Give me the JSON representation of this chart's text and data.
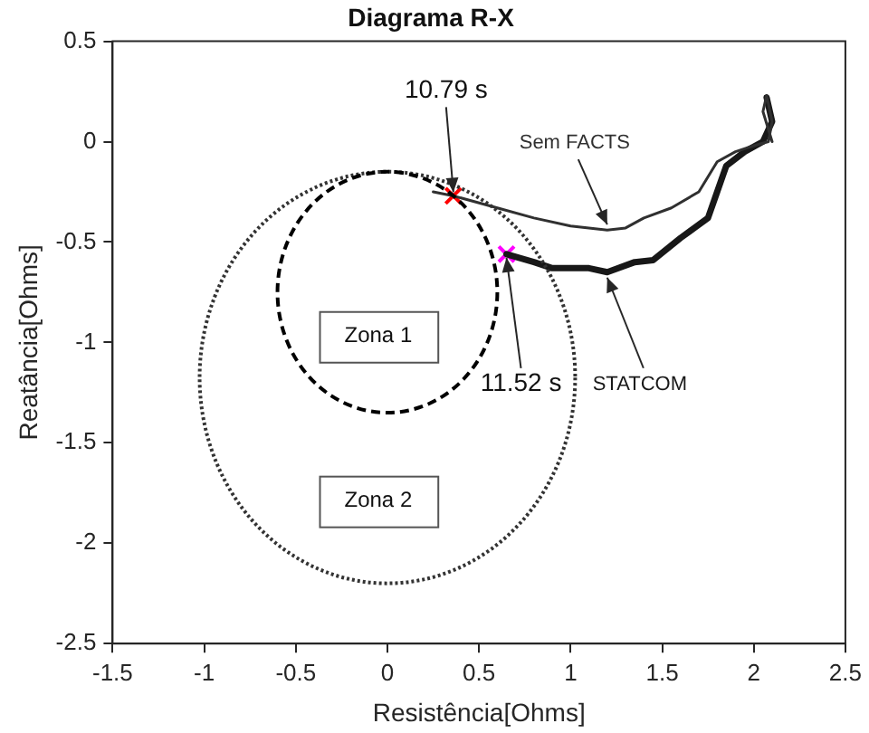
{
  "chart_data": {
    "type": "line",
    "title": "Diagrama R-X",
    "xlabel": "Resistência[Ohms]",
    "ylabel": "Reatância[Ohms]",
    "xlim": [
      -1.5,
      2.5
    ],
    "xticks": [
      -1.5,
      -1,
      -0.5,
      0,
      0.5,
      1,
      1.5,
      2,
      2.5
    ],
    "ylim": [
      -2.5,
      0.5
    ],
    "yticks": [
      -2.5,
      -2,
      -1.5,
      -1,
      -0.5,
      0,
      0.5
    ],
    "grid": false,
    "legend": false,
    "marker": "none",
    "series": [
      {
        "name": "Sem FACTS",
        "color": "#303030",
        "line_style": "solid",
        "x": [
          0.25,
          0.36,
          0.6,
          0.8,
          1.0,
          1.2,
          1.3,
          1.4,
          1.55,
          1.7,
          1.8,
          1.9,
          2.0,
          2.08,
          2.1,
          2.07,
          2.05,
          2.1
        ],
        "values": [
          -0.25,
          -0.27,
          -0.33,
          -0.38,
          -0.42,
          -0.44,
          -0.43,
          -0.38,
          -0.33,
          -0.25,
          -0.1,
          -0.05,
          -0.02,
          0.0,
          0.1,
          0.23,
          0.15,
          0.0
        ]
      },
      {
        "name": "STATCOM",
        "color": "#181818",
        "line_style": "solid",
        "x": [
          0.65,
          0.8,
          0.9,
          1.1,
          1.2,
          1.35,
          1.45,
          1.6,
          1.75,
          1.8,
          1.85,
          1.95,
          2.05,
          2.1,
          2.07
        ],
        "values": [
          -0.56,
          -0.6,
          -0.63,
          -0.63,
          -0.65,
          -0.6,
          -0.59,
          -0.48,
          -0.38,
          -0.25,
          -0.12,
          -0.05,
          0.0,
          0.1,
          0.22
        ]
      },
      {
        "type": "scatter",
        "marker": "cross",
        "color": "#ff0000",
        "x": [
          0.36
        ],
        "values": [
          -0.27
        ]
      },
      {
        "type": "scatter",
        "marker": "cross",
        "color": "#ff00ff",
        "x": [
          0.65
        ],
        "values": [
          -0.56
        ]
      }
    ],
    "annotations": [
      {
        "text": "10.79 s",
        "x": 0.36,
        "y": -0.27
      },
      {
        "text": "11.52 s",
        "x": 0.65,
        "y": -0.56
      },
      "Zona 1",
      "Zona 2"
    ]
  }
}
